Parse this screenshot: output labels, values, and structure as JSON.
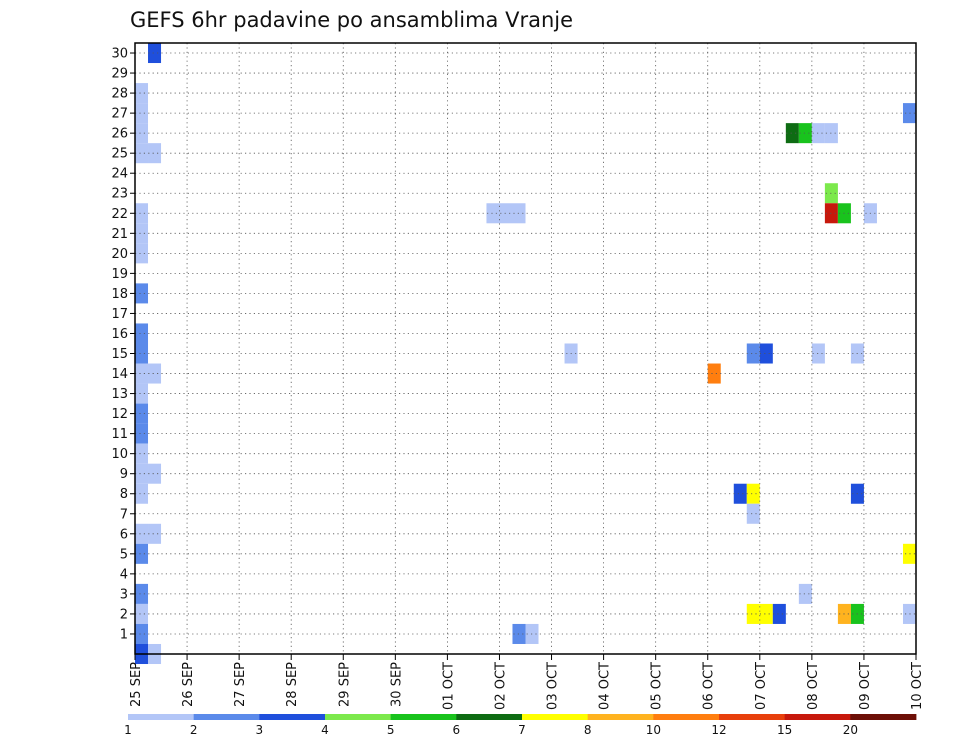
{
  "chart_data": {
    "type": "heatmap",
    "title": "GEFS 6hr padavine po ansamblima Vranje",
    "xlabel": "",
    "ylabel": "",
    "grid": true,
    "x_ticks": [
      "25 SEP",
      "26 SEP",
      "27 SEP",
      "28 SEP",
      "29 SEP",
      "30 SEP",
      "01 OCT",
      "02 OCT",
      "03 OCT",
      "04 OCT",
      "05 OCT",
      "06 OCT",
      "07 OCT",
      "08 OCT",
      "09 OCT",
      "10 OCT"
    ],
    "y_ticks": [
      "1",
      "2",
      "3",
      "4",
      "5",
      "6",
      "7",
      "8",
      "9",
      "10",
      "11",
      "12",
      "13",
      "14",
      "15",
      "16",
      "17",
      "18",
      "19",
      "20",
      "21",
      "22",
      "23",
      "24",
      "25",
      "26",
      "27",
      "28",
      "29",
      "30"
    ],
    "xlim": [
      0,
      60
    ],
    "ylim": [
      0,
      30
    ],
    "x_unit": "6-hour steps since 25 SEP 00Z",
    "y_unit": "ensemble member",
    "colorbar": {
      "levels": [
        "1",
        "2",
        "3",
        "4",
        "5",
        "6",
        "7",
        "8",
        "10",
        "12",
        "15",
        "20"
      ],
      "colors": [
        "#b3c6f7",
        "#5b8aea",
        "#1f4fdc",
        "#7ce94c",
        "#19c31d",
        "#0e6c13",
        "#ffff00",
        "#ffb31f",
        "#ff7e0f",
        "#e8400c",
        "#c7180c",
        "#6d0f07"
      ]
    },
    "cells": [
      {
        "x": 1,
        "m": 30,
        "c": 3
      },
      {
        "x": 0,
        "m": 28,
        "c": 1
      },
      {
        "x": 0,
        "m": 27,
        "c": 1
      },
      {
        "x": 0,
        "m": 26,
        "c": 1
      },
      {
        "x": 0,
        "m": 25,
        "c": 1
      },
      {
        "x": 1,
        "m": 25,
        "c": 1
      },
      {
        "x": 0,
        "m": 22,
        "c": 1
      },
      {
        "x": 0,
        "m": 21,
        "c": 1
      },
      {
        "x": 0,
        "m": 20,
        "c": 1
      },
      {
        "x": 0,
        "m": 18,
        "c": 2
      },
      {
        "x": 0,
        "m": 16,
        "c": 2
      },
      {
        "x": 0,
        "m": 15,
        "c": 2
      },
      {
        "x": 0,
        "m": 14,
        "c": 1
      },
      {
        "x": 1,
        "m": 14,
        "c": 1
      },
      {
        "x": 0,
        "m": 13,
        "c": 1
      },
      {
        "x": 0,
        "m": 12,
        "c": 2
      },
      {
        "x": 0,
        "m": 11,
        "c": 2
      },
      {
        "x": 0,
        "m": 10,
        "c": 1
      },
      {
        "x": 0,
        "m": 9,
        "c": 1
      },
      {
        "x": 1,
        "m": 9,
        "c": 1
      },
      {
        "x": 0,
        "m": 8,
        "c": 1
      },
      {
        "x": 0,
        "m": 6,
        "c": 1
      },
      {
        "x": 1,
        "m": 6,
        "c": 1
      },
      {
        "x": 0,
        "m": 5,
        "c": 2
      },
      {
        "x": 0,
        "m": 3,
        "c": 2
      },
      {
        "x": 0,
        "m": 2,
        "c": 1
      },
      {
        "x": 0,
        "m": 1,
        "c": 2
      },
      {
        "x": 0,
        "m": 0,
        "c": 3
      },
      {
        "x": 1,
        "m": 0,
        "c": 1
      },
      {
        "x": 27,
        "m": 22,
        "c": 1
      },
      {
        "x": 28,
        "m": 22,
        "c": 1
      },
      {
        "x": 29,
        "m": 22,
        "c": 1
      },
      {
        "x": 29,
        "m": 1,
        "c": 2
      },
      {
        "x": 30,
        "m": 1,
        "c": 1
      },
      {
        "x": 33,
        "m": 15,
        "c": 1
      },
      {
        "x": 44,
        "m": 14,
        "c": 9
      },
      {
        "x": 46,
        "m": 8,
        "c": 3
      },
      {
        "x": 47,
        "m": 8,
        "c": 7
      },
      {
        "x": 47,
        "m": 7,
        "c": 1
      },
      {
        "x": 47,
        "m": 15,
        "c": 2
      },
      {
        "x": 48,
        "m": 15,
        "c": 3
      },
      {
        "x": 47,
        "m": 2,
        "c": 7
      },
      {
        "x": 48,
        "m": 2,
        "c": 7
      },
      {
        "x": 49,
        "m": 2,
        "c": 3
      },
      {
        "x": 50,
        "m": 26,
        "c": 6
      },
      {
        "x": 51,
        "m": 26,
        "c": 5
      },
      {
        "x": 52,
        "m": 26,
        "c": 1
      },
      {
        "x": 53,
        "m": 26,
        "c": 1
      },
      {
        "x": 51,
        "m": 3,
        "c": 1
      },
      {
        "x": 52,
        "m": 15,
        "c": 1
      },
      {
        "x": 53,
        "m": 23,
        "c": 4
      },
      {
        "x": 53,
        "m": 22,
        "c": 11
      },
      {
        "x": 54,
        "m": 22,
        "c": 5
      },
      {
        "x": 54,
        "m": 2,
        "c": 8
      },
      {
        "x": 55,
        "m": 2,
        "c": 5
      },
      {
        "x": 55,
        "m": 15,
        "c": 1
      },
      {
        "x": 55,
        "m": 8,
        "c": 3
      },
      {
        "x": 56,
        "m": 22,
        "c": 1
      },
      {
        "x": 59,
        "m": 27,
        "c": 2
      },
      {
        "x": 59,
        "m": 5,
        "c": 7
      },
      {
        "x": 59,
        "m": 2,
        "c": 1
      }
    ]
  }
}
